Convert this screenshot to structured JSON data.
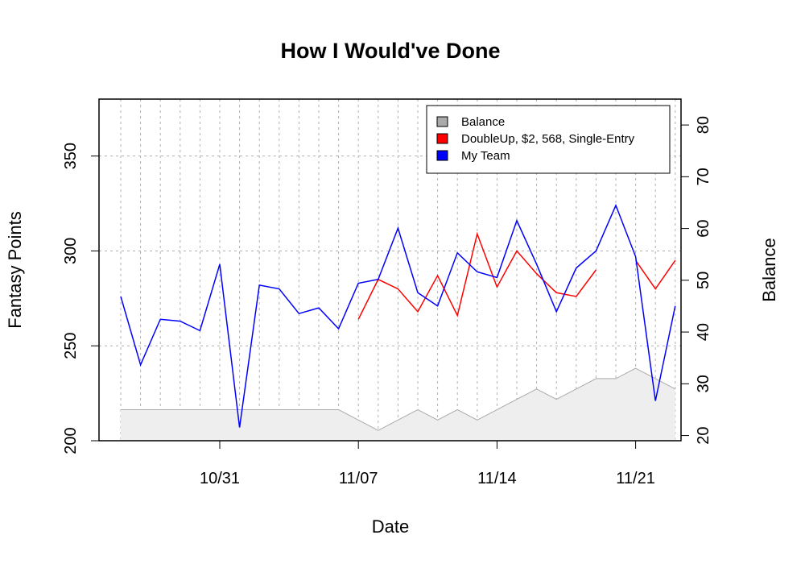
{
  "chart_data": {
    "type": "line",
    "title": "How I Would've Done",
    "xlabel": "Date",
    "ylabel": "Fantasy Points",
    "y2label": "Balance",
    "x": [
      "10/26",
      "10/27",
      "10/28",
      "10/29",
      "10/30",
      "10/31",
      "11/01",
      "11/02",
      "11/03",
      "11/04",
      "11/05",
      "11/06",
      "11/07",
      "11/08",
      "11/09",
      "11/10",
      "11/11",
      "11/12",
      "11/13",
      "11/14",
      "11/15",
      "11/16",
      "11/17",
      "11/18",
      "11/19",
      "11/20",
      "11/21",
      "11/22",
      "11/23"
    ],
    "x_ticks": [
      "10/31",
      "11/07",
      "11/14",
      "11/21"
    ],
    "ylim": [
      200,
      380
    ],
    "y_ticks": [
      200,
      250,
      300,
      350
    ],
    "y2lim": [
      19,
      85
    ],
    "y2_ticks": [
      20,
      30,
      40,
      50,
      60,
      70,
      80
    ],
    "grid": true,
    "legend_position": "top-right",
    "series": [
      {
        "name": "Balance",
        "axis": "right",
        "style": "area",
        "color": "#aaaaaa",
        "fill": "#eeeeee",
        "values": [
          25,
          25,
          25,
          25,
          25,
          25,
          25,
          25,
          25,
          25,
          25,
          25,
          23,
          21,
          23,
          25,
          23,
          25,
          23,
          25,
          27,
          29,
          27,
          29,
          31,
          31,
          33,
          31,
          29
        ]
      },
      {
        "name": "DoubleUp, $2, 568, Single-Entry",
        "axis": "left",
        "style": "line",
        "color": "#ff0000",
        "values": [
          null,
          null,
          null,
          null,
          null,
          null,
          null,
          null,
          null,
          null,
          null,
          null,
          264,
          285,
          280,
          268,
          287,
          266,
          309,
          281,
          300,
          288,
          278,
          276,
          290,
          null,
          295,
          280,
          295
        ]
      },
      {
        "name": "My Team",
        "axis": "left",
        "style": "line",
        "color": "#0000ff",
        "values": [
          276,
          240,
          264,
          263,
          258,
          293,
          207,
          282,
          280,
          267,
          270,
          259,
          283,
          285,
          312,
          278,
          271,
          299,
          289,
          286,
          316,
          293,
          268,
          291,
          300,
          324,
          297,
          221,
          271
        ]
      }
    ]
  }
}
